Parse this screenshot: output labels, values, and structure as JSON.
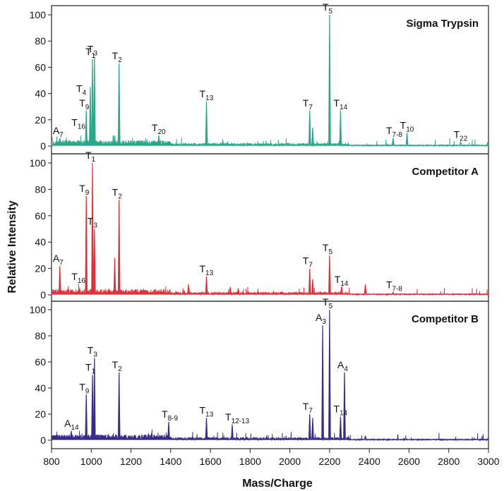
{
  "figure": {
    "xlabel": "Mass/Charge",
    "ylabel": "Relative Intensity"
  },
  "chart_data": [
    {
      "type": "line",
      "title": "Sigma Trypsin",
      "color": "#2aa68a",
      "xlim": [
        800,
        3000
      ],
      "ylim": [
        0,
        100
      ],
      "x_ticks": [
        "800",
        "1000",
        "1200",
        "1400",
        "1600",
        "1800",
        "2000",
        "2200",
        "2400",
        "2600",
        "2800",
        "3000"
      ],
      "y_ticks": [
        "0",
        "20",
        "40",
        "60",
        "80",
        "100"
      ],
      "peaks": [
        [
          842,
          6
        ],
        [
          975,
          27
        ],
        [
          995,
          45
        ],
        [
          1006,
          66
        ],
        [
          1016,
          68
        ],
        [
          1118,
          8
        ],
        [
          1140,
          63
        ],
        [
          1340,
          8
        ],
        [
          1580,
          34
        ],
        [
          2100,
          27
        ],
        [
          2115,
          14
        ],
        [
          2200,
          100
        ],
        [
          2255,
          27
        ],
        [
          2520,
          6
        ],
        [
          2590,
          10
        ],
        [
          2860,
          3
        ]
      ],
      "annotations": [
        {
          "text": "A",
          "sub": "7",
          "x": 842,
          "y": 6
        },
        {
          "text": "T",
          "sub": "16",
          "x": 936,
          "y": 12
        },
        {
          "text": "T",
          "sub": "4",
          "x": 960,
          "y": 38
        },
        {
          "text": "T",
          "sub": "9",
          "x": 975,
          "y": 27
        },
        {
          "text": "T",
          "sub": "1",
          "x": 1006,
          "y": 66
        },
        {
          "text": "T",
          "sub": "3",
          "x": 1016,
          "y": 68
        },
        {
          "text": "T",
          "sub": "2",
          "x": 1140,
          "y": 63
        },
        {
          "text": "T",
          "sub": "20",
          "x": 1340,
          "y": 8
        },
        {
          "text": "T",
          "sub": "13",
          "x": 1580,
          "y": 34
        },
        {
          "text": "T",
          "sub": "7",
          "x": 2100,
          "y": 27
        },
        {
          "text": "T",
          "sub": "5",
          "x": 2200,
          "y": 100
        },
        {
          "text": "T",
          "sub": "14",
          "x": 2255,
          "y": 27
        },
        {
          "text": "T",
          "sub": "7-8",
          "x": 2520,
          "y": 6
        },
        {
          "text": "T",
          "sub": "10",
          "x": 2590,
          "y": 10
        },
        {
          "text": "T",
          "sub": "22",
          "x": 2860,
          "y": 3
        }
      ]
    },
    {
      "type": "line",
      "title": "Competitor A",
      "color": "#e0313a",
      "xlim": [
        800,
        3000
      ],
      "ylim": [
        0,
        100
      ],
      "x_ticks": [
        "800",
        "1000",
        "1200",
        "1400",
        "1600",
        "1800",
        "2000",
        "2200",
        "2400",
        "2600",
        "2800",
        "3000"
      ],
      "y_ticks": [
        "0",
        "20",
        "40",
        "60",
        "80",
        "100"
      ],
      "peaks": [
        [
          842,
          22
        ],
        [
          975,
          75
        ],
        [
          1006,
          100
        ],
        [
          1016,
          50
        ],
        [
          1118,
          28
        ],
        [
          1140,
          72
        ],
        [
          1490,
          8
        ],
        [
          1580,
          14
        ],
        [
          1700,
          6
        ],
        [
          1740,
          5
        ],
        [
          2100,
          20
        ],
        [
          2115,
          12
        ],
        [
          2200,
          30
        ],
        [
          2260,
          6
        ],
        [
          2380,
          8
        ],
        [
          2520,
          2
        ]
      ],
      "annotations": [
        {
          "text": "A",
          "sub": "7",
          "x": 842,
          "y": 22
        },
        {
          "text": "T",
          "sub": "16",
          "x": 936,
          "y": 8
        },
        {
          "text": "T",
          "sub": "9",
          "x": 975,
          "y": 75
        },
        {
          "text": "T",
          "sub": "1",
          "x": 1006,
          "y": 100
        },
        {
          "text": "T",
          "sub": "3",
          "x": 1016,
          "y": 50
        },
        {
          "text": "T",
          "sub": "2",
          "x": 1140,
          "y": 72
        },
        {
          "text": "T",
          "sub": "13",
          "x": 1580,
          "y": 14
        },
        {
          "text": "T",
          "sub": "7",
          "x": 2100,
          "y": 20
        },
        {
          "text": "T",
          "sub": "5",
          "x": 2200,
          "y": 30
        },
        {
          "text": "T",
          "sub": "14",
          "x": 2260,
          "y": 6
        },
        {
          "text": "T",
          "sub": "7-8",
          "x": 2520,
          "y": 2
        }
      ]
    },
    {
      "type": "line",
      "title": "Competitor B",
      "color": "#3a2a8c",
      "xlim": [
        800,
        3000
      ],
      "ylim": [
        0,
        100
      ],
      "x_ticks": [
        "800",
        "1000",
        "1200",
        "1400",
        "1600",
        "1800",
        "2000",
        "2200",
        "2400",
        "2600",
        "2800",
        "3000"
      ],
      "y_ticks": [
        "0",
        "20",
        "40",
        "60",
        "80",
        "100"
      ],
      "peaks": [
        [
          900,
          7
        ],
        [
          975,
          35
        ],
        [
          1006,
          50
        ],
        [
          1016,
          63
        ],
        [
          1140,
          52
        ],
        [
          1390,
          14
        ],
        [
          1580,
          17
        ],
        [
          1710,
          12
        ],
        [
          2100,
          20
        ],
        [
          2115,
          17
        ],
        [
          2165,
          88
        ],
        [
          2200,
          100
        ],
        [
          2255,
          18
        ],
        [
          2275,
          52
        ],
        [
          2380,
          3
        ]
      ],
      "annotations": [
        {
          "text": "A",
          "sub": "14",
          "x": 900,
          "y": 7
        },
        {
          "text": "T",
          "sub": "9",
          "x": 975,
          "y": 35
        },
        {
          "text": "T",
          "sub": "1",
          "x": 1006,
          "y": 50
        },
        {
          "text": "T",
          "sub": "3",
          "x": 1016,
          "y": 63
        },
        {
          "text": "T",
          "sub": "2",
          "x": 1140,
          "y": 52
        },
        {
          "text": "T",
          "sub": "8-9",
          "x": 1390,
          "y": 14
        },
        {
          "text": "T",
          "sub": "13",
          "x": 1580,
          "y": 17
        },
        {
          "text": "T",
          "sub": "12-13",
          "x": 1710,
          "y": 12
        },
        {
          "text": "T",
          "sub": "7",
          "x": 2100,
          "y": 20
        },
        {
          "text": "A",
          "sub": "3",
          "x": 2165,
          "y": 88
        },
        {
          "text": "T",
          "sub": "5",
          "x": 2200,
          "y": 100
        },
        {
          "text": "T",
          "sub": "14",
          "x": 2255,
          "y": 18
        },
        {
          "text": "A",
          "sub": "4",
          "x": 2275,
          "y": 52
        }
      ]
    }
  ]
}
